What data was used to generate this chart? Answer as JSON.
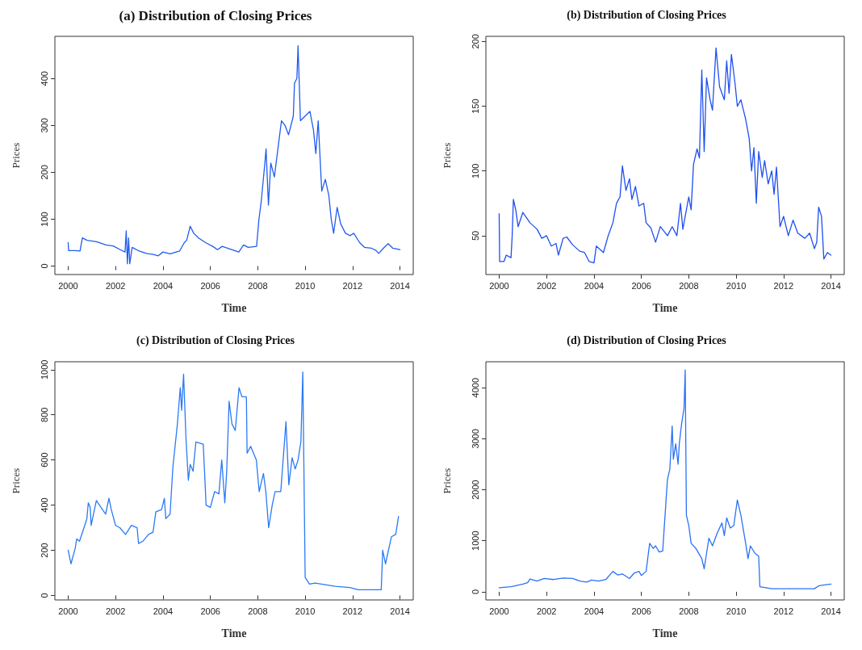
{
  "chart_data": [
    {
      "type": "line",
      "title": "(a) Distribution of Closing Prices",
      "xlabel": "Time",
      "ylabel": "Prices",
      "color": "#1f5cf0",
      "marker": "none",
      "xlim": [
        1999.44,
        2014.56
      ],
      "ylim": [
        -18,
        490
      ],
      "xticks": [
        2000,
        2002,
        2004,
        2006,
        2008,
        2010,
        2012,
        2014
      ],
      "yticks": [
        0,
        100,
        200,
        300,
        400
      ],
      "x": [
        2000.0,
        2000.02,
        2000.3,
        2000.5,
        2000.6,
        2000.8,
        2001.2,
        2001.6,
        2001.9,
        2002.2,
        2002.4,
        2002.45,
        2002.5,
        2002.55,
        2002.6,
        2002.7,
        2003.0,
        2003.3,
        2003.6,
        2003.8,
        2004.0,
        2004.3,
        2004.7,
        2004.9,
        2005.0,
        2005.15,
        2005.3,
        2005.5,
        2005.8,
        2006.1,
        2006.3,
        2006.5,
        2006.9,
        2007.2,
        2007.4,
        2007.6,
        2007.95,
        2008.05,
        2008.15,
        2008.3,
        2008.35,
        2008.45,
        2008.55,
        2008.7,
        2008.85,
        2009.0,
        2009.15,
        2009.3,
        2009.5,
        2009.55,
        2009.65,
        2009.7,
        2009.8,
        2010.0,
        2010.2,
        2010.35,
        2010.45,
        2010.55,
        2010.7,
        2010.85,
        2011.0,
        2011.1,
        2011.2,
        2011.35,
        2011.5,
        2011.7,
        2011.9,
        2012.05,
        2012.3,
        2012.5,
        2012.8,
        2013.0,
        2013.1,
        2013.3,
        2013.5,
        2013.7,
        2014.0
      ],
      "values": [
        50,
        33,
        33,
        32,
        60,
        55,
        52,
        45,
        43,
        35,
        30,
        75,
        5,
        60,
        5,
        40,
        32,
        27,
        25,
        22,
        30,
        26,
        32,
        50,
        55,
        85,
        70,
        60,
        50,
        42,
        35,
        42,
        35,
        30,
        45,
        40,
        42,
        100,
        140,
        220,
        250,
        130,
        220,
        190,
        250,
        310,
        300,
        280,
        320,
        390,
        400,
        470,
        310,
        320,
        330,
        290,
        240,
        310,
        160,
        185,
        150,
        100,
        70,
        125,
        90,
        70,
        65,
        70,
        50,
        40,
        38,
        33,
        27,
        38,
        48,
        38,
        35
      ]
    },
    {
      "type": "line",
      "title": "(b) Distribution of Closing Prices",
      "xlabel": "Time",
      "ylabel": "Prices",
      "color": "#1f4ff0",
      "marker": "none",
      "xlim": [
        1999.44,
        2014.56
      ],
      "ylim": [
        20,
        204
      ],
      "xticks": [
        2000,
        2002,
        2004,
        2006,
        2008,
        2010,
        2012,
        2014
      ],
      "yticks": [
        50,
        100,
        150,
        200
      ],
      "x": [
        2000.0,
        2000.02,
        2000.2,
        2000.3,
        2000.5,
        2000.55,
        2000.6,
        2000.7,
        2000.8,
        2001.0,
        2001.3,
        2001.6,
        2001.8,
        2002.0,
        2002.2,
        2002.4,
        2002.5,
        2002.7,
        2002.85,
        2003.1,
        2003.4,
        2003.6,
        2003.8,
        2004.0,
        2004.1,
        2004.4,
        2004.6,
        2004.8,
        2004.95,
        2005.1,
        2005.2,
        2005.35,
        2005.5,
        2005.6,
        2005.75,
        2005.9,
        2006.1,
        2006.2,
        2006.4,
        2006.6,
        2006.8,
        2007.1,
        2007.3,
        2007.5,
        2007.65,
        2007.75,
        2008.0,
        2008.1,
        2008.2,
        2008.35,
        2008.45,
        2008.55,
        2008.65,
        2008.75,
        2008.9,
        2009.0,
        2009.15,
        2009.3,
        2009.5,
        2009.6,
        2009.7,
        2009.8,
        2009.95,
        2010.05,
        2010.2,
        2010.4,
        2010.55,
        2010.65,
        2010.75,
        2010.85,
        2010.95,
        2011.1,
        2011.2,
        2011.35,
        2011.5,
        2011.6,
        2011.7,
        2011.85,
        2012.0,
        2012.2,
        2012.4,
        2012.6,
        2012.9,
        2013.1,
        2013.3,
        2013.4,
        2013.48,
        2013.6,
        2013.7,
        2013.85,
        2014.0
      ],
      "values": [
        67,
        30,
        30,
        35,
        33,
        50,
        78,
        70,
        57,
        68,
        60,
        55,
        48,
        50,
        42,
        44,
        35,
        48,
        49,
        43,
        38,
        37,
        30,
        29,
        42,
        37,
        50,
        60,
        75,
        80,
        104,
        85,
        94,
        78,
        88,
        73,
        75,
        60,
        56,
        45,
        57,
        50,
        57,
        50,
        75,
        55,
        80,
        70,
        105,
        117,
        110,
        178,
        115,
        172,
        155,
        147,
        195,
        165,
        155,
        185,
        160,
        190,
        168,
        150,
        155,
        140,
        125,
        100,
        118,
        75,
        115,
        95,
        108,
        90,
        100,
        82,
        103,
        57,
        65,
        50,
        62,
        52,
        48,
        52,
        40,
        45,
        72,
        65,
        32,
        37,
        35
      ]
    },
    {
      "type": "line",
      "title": "(c) Distribution of Closing Prices",
      "xlabel": "Time",
      "ylabel": "Prices",
      "color": "#2a7af5",
      "marker": "none",
      "xlim": [
        1999.44,
        2014.56
      ],
      "ylim": [
        -20,
        1035
      ],
      "xticks": [
        2000,
        2002,
        2004,
        2006,
        2008,
        2010,
        2012,
        2014
      ],
      "yticks": [
        0,
        200,
        400,
        600,
        800,
        1000
      ],
      "x": [
        2000.0,
        2000.12,
        2000.3,
        2000.36,
        2000.48,
        2000.73,
        2000.79,
        2000.85,
        2000.93,
        2000.97,
        2001.19,
        2001.45,
        2001.58,
        2001.72,
        2001.82,
        2002.0,
        2002.18,
        2002.42,
        2002.67,
        2002.91,
        2002.97,
        2003.15,
        2003.39,
        2003.58,
        2003.7,
        2003.94,
        2004.06,
        2004.12,
        2004.3,
        2004.42,
        2004.61,
        2004.73,
        2004.79,
        2004.87,
        2004.97,
        2005.07,
        2005.15,
        2005.27,
        2005.39,
        2005.7,
        2005.82,
        2006.0,
        2006.18,
        2006.36,
        2006.48,
        2006.61,
        2006.69,
        2006.79,
        2006.91,
        2007.05,
        2007.21,
        2007.33,
        2007.52,
        2007.55,
        2007.7,
        2007.94,
        2008.06,
        2008.24,
        2008.34,
        2008.46,
        2008.61,
        2008.73,
        2008.97,
        2009.07,
        2009.19,
        2009.31,
        2009.45,
        2009.58,
        2009.7,
        2009.82,
        2009.9,
        2010.0,
        2010.18,
        2010.42,
        2011.27,
        2011.88,
        2012.24,
        2013.21,
        2013.27,
        2013.39,
        2013.64,
        2013.82,
        2013.94
      ],
      "values": [
        200,
        140,
        210,
        250,
        240,
        320,
        340,
        410,
        390,
        310,
        420,
        380,
        360,
        430,
        380,
        310,
        300,
        270,
        310,
        300,
        230,
        240,
        270,
        280,
        370,
        380,
        430,
        340,
        360,
        570,
        760,
        920,
        820,
        980,
        700,
        510,
        580,
        550,
        680,
        670,
        400,
        390,
        460,
        450,
        600,
        410,
        550,
        860,
        760,
        730,
        920,
        880,
        880,
        630,
        660,
        600,
        460,
        540,
        460,
        300,
        400,
        460,
        460,
        600,
        770,
        490,
        610,
        560,
        600,
        680,
        990,
        80,
        50,
        55,
        40,
        35,
        25,
        25,
        200,
        140,
        260,
        270,
        350
      ]
    },
    {
      "type": "line",
      "title": "(d) Distribution of Closing Prices",
      "xlabel": "Time",
      "ylabel": "Prices",
      "color": "#2a72f5",
      "marker": "none",
      "xlim": [
        1999.44,
        2014.56
      ],
      "ylim": [
        -160,
        4510
      ],
      "xticks": [
        2000,
        2002,
        2004,
        2006,
        2008,
        2010,
        2012,
        2014
      ],
      "yticks": [
        0,
        1000,
        2000,
        3000,
        4000
      ],
      "x": [
        2000.0,
        2000.5,
        2001.0,
        2001.2,
        2001.3,
        2001.6,
        2001.9,
        2002.3,
        2002.7,
        2003.1,
        2003.4,
        2003.7,
        2003.9,
        2004.2,
        2004.5,
        2004.8,
        2005.0,
        2005.2,
        2005.5,
        2005.7,
        2005.9,
        2006.0,
        2006.2,
        2006.35,
        2006.5,
        2006.6,
        2006.75,
        2006.9,
        2007.0,
        2007.1,
        2007.2,
        2007.3,
        2007.35,
        2007.45,
        2007.55,
        2007.6,
        2007.7,
        2007.8,
        2007.85,
        2007.9,
        2008.0,
        2008.1,
        2008.3,
        2008.55,
        2008.65,
        2008.75,
        2008.85,
        2009.0,
        2009.2,
        2009.4,
        2009.5,
        2009.6,
        2009.75,
        2009.9,
        2010.05,
        2010.2,
        2010.4,
        2010.5,
        2010.6,
        2010.8,
        2010.95,
        2011.0,
        2011.5,
        2012.5,
        2013.3,
        2013.5,
        2014.0
      ],
      "values": [
        80,
        100,
        150,
        180,
        250,
        210,
        260,
        240,
        270,
        260,
        210,
        190,
        230,
        210,
        240,
        400,
        330,
        350,
        260,
        370,
        400,
        320,
        400,
        950,
        850,
        900,
        780,
        800,
        1500,
        2200,
        2400,
        3250,
        2600,
        2900,
        2500,
        2900,
        3300,
        3600,
        4350,
        1500,
        1300,
        950,
        850,
        650,
        450,
        750,
        1050,
        900,
        1150,
        1350,
        1100,
        1450,
        1250,
        1300,
        1800,
        1500,
        950,
        650,
        900,
        750,
        700,
        100,
        60,
        60,
        60,
        120,
        150
      ]
    }
  ]
}
